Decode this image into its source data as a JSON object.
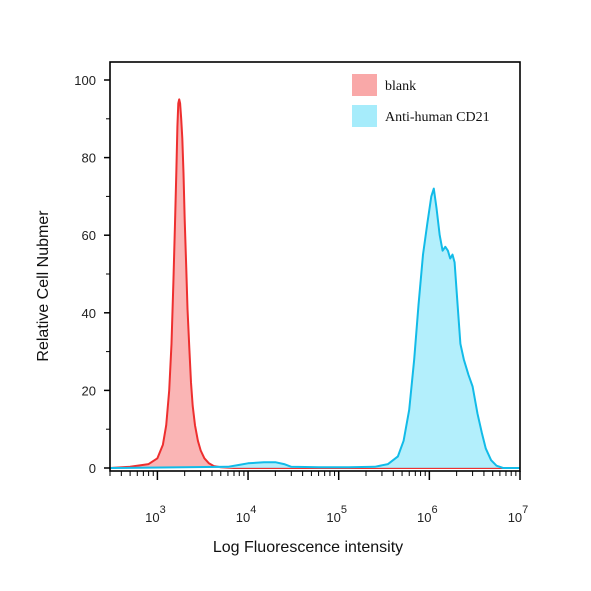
{
  "chart_data": {
    "type": "area",
    "xlabel": "Log Fluorescence intensity",
    "ylabel": "Relative Cell Nubmer",
    "x_scale": "log",
    "xlim": [
      300,
      10000000
    ],
    "ylim": [
      0,
      100
    ],
    "x_ticks": [
      {
        "base": "10",
        "exp": "3",
        "value": 1000
      },
      {
        "base": "10",
        "exp": "4",
        "value": 10000
      },
      {
        "base": "10",
        "exp": "5",
        "value": 100000
      },
      {
        "base": "10",
        "exp": "6",
        "value": 1000000
      },
      {
        "base": "10",
        "exp": "7",
        "value": 10000000
      }
    ],
    "y_ticks": [
      "0",
      "20",
      "40",
      "60",
      "80",
      "100"
    ],
    "legend_position": "top-right",
    "grid": false,
    "series": [
      {
        "name": "blank",
        "fill": "#f9a8a8",
        "stroke": "#ee2f2f",
        "points": [
          [
            300,
            0
          ],
          [
            500,
            0.3
          ],
          [
            800,
            1
          ],
          [
            1000,
            2.5
          ],
          [
            1150,
            6
          ],
          [
            1250,
            11
          ],
          [
            1350,
            20
          ],
          [
            1430,
            32
          ],
          [
            1500,
            48
          ],
          [
            1560,
            62
          ],
          [
            1620,
            77
          ],
          [
            1660,
            88
          ],
          [
            1700,
            94
          ],
          [
            1740,
            95
          ],
          [
            1780,
            94
          ],
          [
            1830,
            90
          ],
          [
            1880,
            85
          ],
          [
            1940,
            76
          ],
          [
            2000,
            64
          ],
          [
            2080,
            52
          ],
          [
            2150,
            41
          ],
          [
            2250,
            31
          ],
          [
            2350,
            22
          ],
          [
            2450,
            16
          ],
          [
            2600,
            11
          ],
          [
            2800,
            7
          ],
          [
            3000,
            4.5
          ],
          [
            3300,
            2.5
          ],
          [
            3700,
            1.2
          ],
          [
            4200,
            0.5
          ],
          [
            5000,
            0.2
          ],
          [
            7000,
            0
          ],
          [
            10000000,
            0
          ]
        ]
      },
      {
        "name": "Anti-human CD21",
        "fill": "#a6ecfb",
        "stroke": "#12bbe8",
        "points": [
          [
            300,
            0
          ],
          [
            6000,
            0.3
          ],
          [
            8000,
            0.8
          ],
          [
            10000,
            1.2
          ],
          [
            15000,
            1.5
          ],
          [
            20000,
            1.5
          ],
          [
            25000,
            1
          ],
          [
            30000,
            0.3
          ],
          [
            60000,
            0.2
          ],
          [
            130000,
            0.2
          ],
          [
            250000,
            0.3
          ],
          [
            350000,
            1
          ],
          [
            450000,
            3
          ],
          [
            520000,
            7
          ],
          [
            600000,
            15
          ],
          [
            680000,
            28
          ],
          [
            760000,
            42
          ],
          [
            850000,
            55
          ],
          [
            950000,
            63
          ],
          [
            1050000,
            70
          ],
          [
            1120000,
            72
          ],
          [
            1200000,
            67
          ],
          [
            1300000,
            60
          ],
          [
            1400000,
            56
          ],
          [
            1500000,
            57
          ],
          [
            1600000,
            56
          ],
          [
            1700000,
            54
          ],
          [
            1800000,
            55
          ],
          [
            1900000,
            53
          ],
          [
            2050000,
            42
          ],
          [
            2200000,
            32
          ],
          [
            2400000,
            28
          ],
          [
            2700000,
            24
          ],
          [
            3000000,
            21
          ],
          [
            3400000,
            14
          ],
          [
            3800000,
            9
          ],
          [
            4200000,
            5
          ],
          [
            4800000,
            2
          ],
          [
            5500000,
            0.6
          ],
          [
            6500000,
            0
          ],
          [
            10000000,
            0
          ]
        ]
      }
    ]
  }
}
